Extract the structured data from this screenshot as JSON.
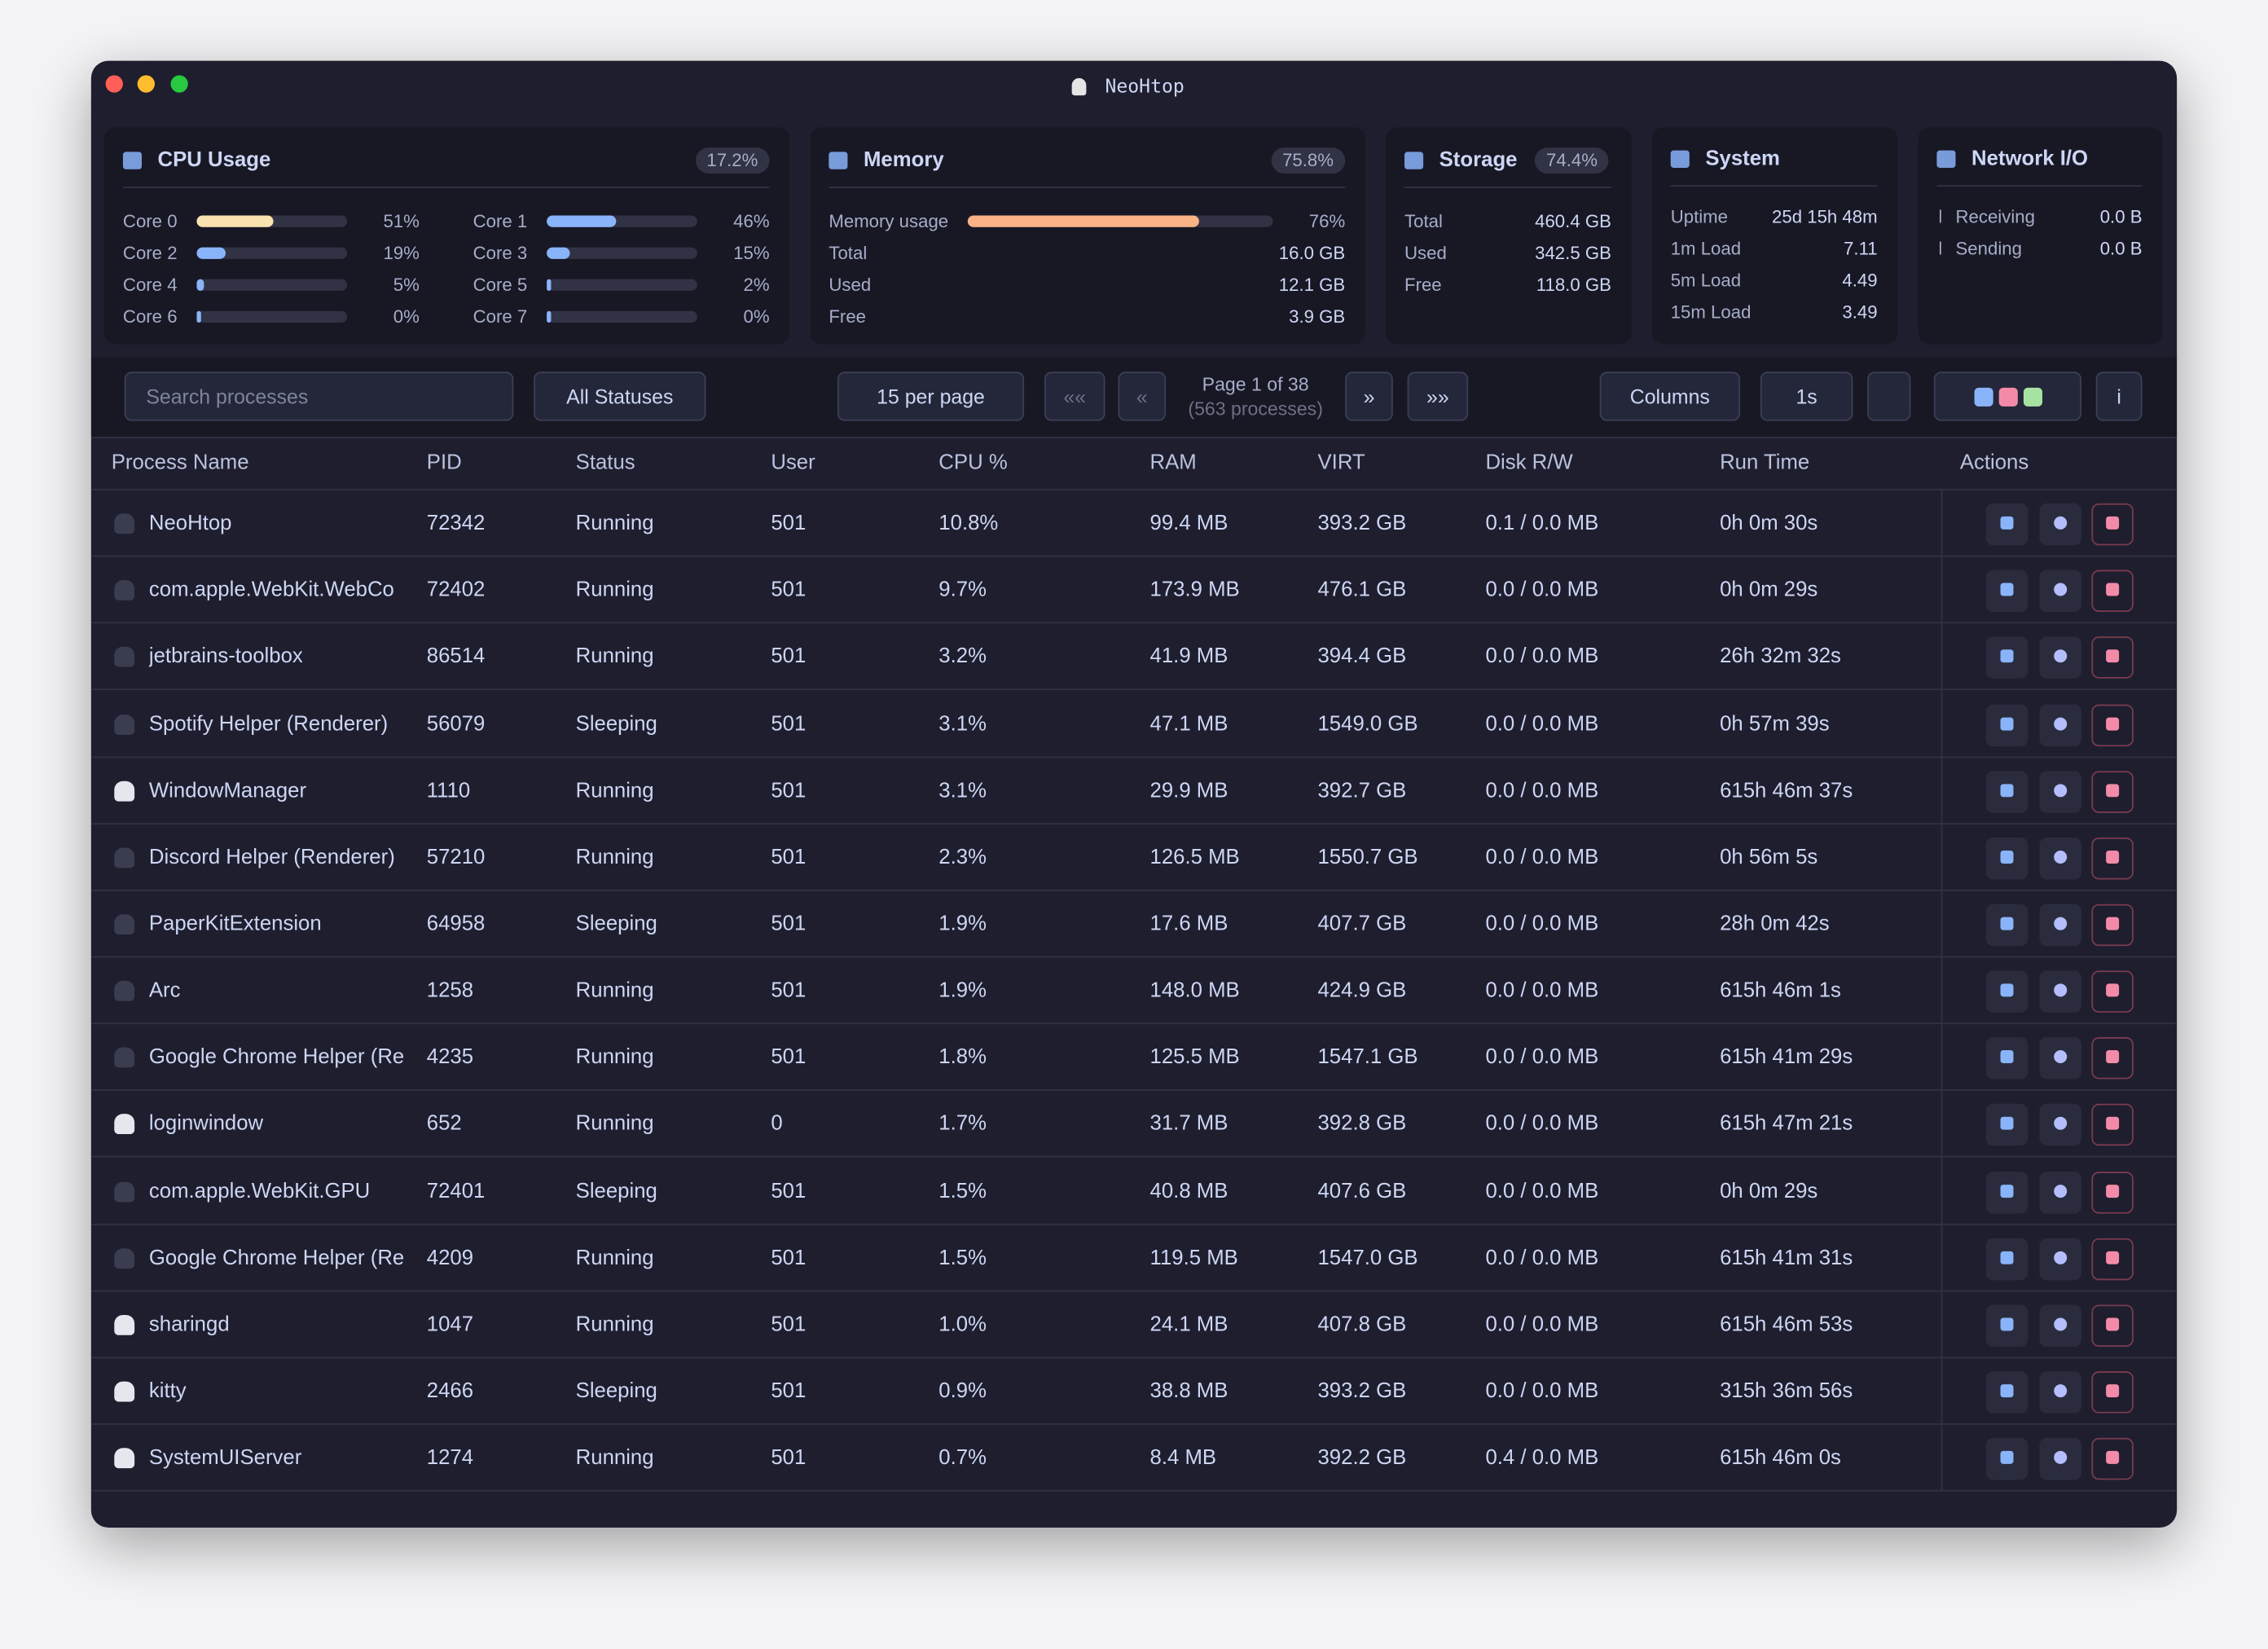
{
  "window": {
    "title": "NeoHtop"
  },
  "cpu": {
    "title": "CPU Usage",
    "total": "17.2%",
    "cores": [
      {
        "label": "Core 0",
        "usage": "51%"
      },
      {
        "label": "Core 1",
        "usage": "46%"
      },
      {
        "label": "Core 2",
        "usage": "19%"
      },
      {
        "label": "Core 3",
        "usage": "15%"
      },
      {
        "label": "Core 4",
        "usage": "5%"
      },
      {
        "label": "Core 5",
        "usage": "2%"
      },
      {
        "label": "Core 6",
        "usage": "0%"
      },
      {
        "label": "Core 7",
        "usage": "0%"
      }
    ]
  },
  "memory": {
    "title": "Memory",
    "total": "75.8%",
    "usage_label": "Memory usage",
    "usage": "76%",
    "rows": [
      {
        "label": "Total",
        "value": "16.0 GB"
      },
      {
        "label": "Used",
        "value": "12.1 GB"
      },
      {
        "label": "Free",
        "value": "3.9 GB"
      }
    ]
  },
  "storage": {
    "title": "Storage",
    "total": "74.4%",
    "rows": [
      {
        "label": "Total",
        "value": "460.4 GB"
      },
      {
        "label": "Used",
        "value": "342.5 GB"
      },
      {
        "label": "Free",
        "value": "118.0 GB"
      }
    ]
  },
  "system": {
    "title": "System",
    "rows": [
      {
        "label": "Uptime",
        "value": "25d 15h 48m"
      },
      {
        "label": "1m Load",
        "value": "7.11"
      },
      {
        "label": "5m Load",
        "value": "4.49"
      },
      {
        "label": "15m Load",
        "value": "3.49"
      }
    ]
  },
  "network": {
    "title": "Network I/O",
    "rows": [
      {
        "label": "Receiving",
        "value": "0.0 B"
      },
      {
        "label": "Sending",
        "value": "0.0 B"
      }
    ]
  },
  "toolbar": {
    "search_placeholder": "Search processes",
    "status_filter": "All Statuses",
    "per_page": "15 per page",
    "first": "««",
    "prev": "«",
    "page": "Page 1 of 38",
    "count": "(563 processes)",
    "next": "»",
    "last": "»»",
    "columns": "Columns",
    "interval": "1s",
    "info": "i"
  },
  "table": {
    "columns": [
      "Process Name",
      "PID",
      "Status",
      "User",
      "CPU %",
      "RAM",
      "VIRT",
      "Disk R/W",
      "Run Time",
      "Actions"
    ],
    "rows": [
      [
        "NeoHtop",
        "72342",
        "Running",
        "501",
        "10.8%",
        "99.4 MB",
        "393.2 GB",
        "0.1 / 0.0 MB",
        "0h 0m 30s"
      ],
      [
        "com.apple.WebKit.WebCo",
        "72402",
        "Running",
        "501",
        "9.7%",
        "173.9 MB",
        "476.1 GB",
        "0.0 / 0.0 MB",
        "0h 0m 29s"
      ],
      [
        "jetbrains-toolbox",
        "86514",
        "Running",
        "501",
        "3.2%",
        "41.9 MB",
        "394.4 GB",
        "0.0 / 0.0 MB",
        "26h 32m 32s"
      ],
      [
        "Spotify Helper (Renderer)",
        "56079",
        "Sleeping",
        "501",
        "3.1%",
        "47.1 MB",
        "1549.0 GB",
        "0.0 / 0.0 MB",
        "0h 57m 39s"
      ],
      [
        "WindowManager",
        "1110",
        "Running",
        "501",
        "3.1%",
        "29.9 MB",
        "392.7 GB",
        "0.0 / 0.0 MB",
        "615h 46m 37s"
      ],
      [
        "Discord Helper (Renderer)",
        "57210",
        "Running",
        "501",
        "2.3%",
        "126.5 MB",
        "1550.7 GB",
        "0.0 / 0.0 MB",
        "0h 56m 5s"
      ],
      [
        "PaperKitExtension",
        "64958",
        "Sleeping",
        "501",
        "1.9%",
        "17.6 MB",
        "407.7 GB",
        "0.0 / 0.0 MB",
        "28h 0m 42s"
      ],
      [
        "Arc",
        "1258",
        "Running",
        "501",
        "1.9%",
        "148.0 MB",
        "424.9 GB",
        "0.0 / 0.0 MB",
        "615h 46m 1s"
      ],
      [
        "Google Chrome Helper (Re",
        "4235",
        "Running",
        "501",
        "1.8%",
        "125.5 MB",
        "1547.1 GB",
        "0.0 / 0.0 MB",
        "615h 41m 29s"
      ],
      [
        "loginwindow",
        "652",
        "Running",
        "0",
        "1.7%",
        "31.7 MB",
        "392.8 GB",
        "0.0 / 0.0 MB",
        "615h 47m 21s"
      ],
      [
        "com.apple.WebKit.GPU",
        "72401",
        "Sleeping",
        "501",
        "1.5%",
        "40.8 MB",
        "407.6 GB",
        "0.0 / 0.0 MB",
        "0h 0m 29s"
      ],
      [
        "Google Chrome Helper (Re",
        "4209",
        "Running",
        "501",
        "1.5%",
        "119.5 MB",
        "1547.0 GB",
        "0.0 / 0.0 MB",
        "615h 41m 31s"
      ],
      [
        "sharingd",
        "1047",
        "Running",
        "501",
        "1.0%",
        "24.1 MB",
        "407.8 GB",
        "0.0 / 0.0 MB",
        "615h 46m 53s"
      ],
      [
        "kitty",
        "2466",
        "Sleeping",
        "501",
        "0.9%",
        "38.8 MB",
        "393.2 GB",
        "0.0 / 0.0 MB",
        "315h 36m 56s"
      ],
      [
        "SystemUIServer",
        "1274",
        "Running",
        "501",
        "0.7%",
        "8.4 MB",
        "392.2 GB",
        "0.4 / 0.0 MB",
        "615h 46m 0s"
      ]
    ]
  }
}
